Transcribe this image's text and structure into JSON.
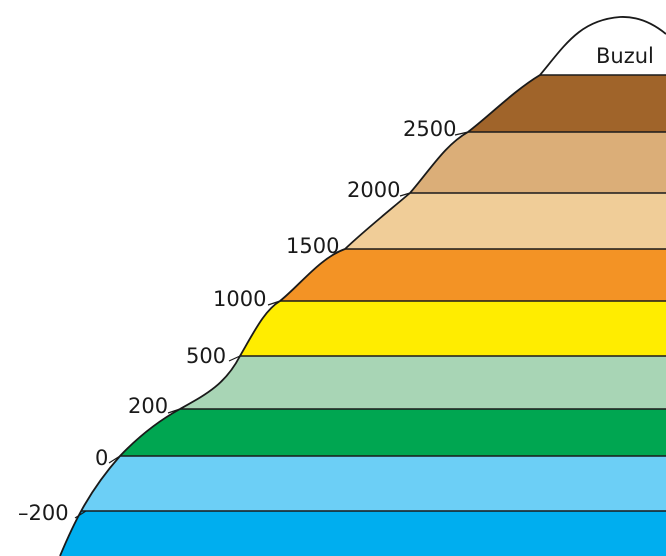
{
  "top_zone_label": "Buzul",
  "elevation_labels": [
    "2500",
    "2000",
    "1500",
    "1000",
    "500",
    "200",
    "0",
    "–200"
  ],
  "colors": {
    "buzul": "#ffffff",
    "band_2500": "#a0642a",
    "band_2000": "#dbae78",
    "band_1500": "#f0cd98",
    "band_1000": "#f39325",
    "band_500": "#ffed00",
    "band_200": "#a8d5b5",
    "band_0": "#00a651",
    "band_minus200": "#6ccff6",
    "band_deep": "#00aeef",
    "outline": "#1a1a1a"
  }
}
